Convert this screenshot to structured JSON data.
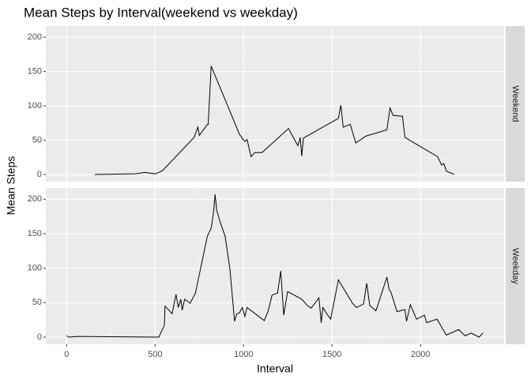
{
  "chart_data": {
    "type": "line",
    "title": "Mean Steps by Interval(weekend vs weekday)",
    "x_label": "Interval",
    "y_label": "Mean Steps",
    "xlim": [
      -117.75,
      2472.75
    ],
    "xticks": [
      0,
      500,
      1000,
      1500,
      2000
    ],
    "ylim": [
      -10.3,
      216.3
    ],
    "yticks": [
      0,
      50,
      100,
      150,
      200
    ],
    "grid": true,
    "color": "#000000",
    "series": [
      {
        "name": "Weekend",
        "x": [
          159,
          389,
          441,
          499,
          521,
          543,
          720,
          742,
          750,
          795,
          800,
          817,
          976,
          1007,
          1020,
          1042,
          1064,
          1104,
          1254,
          1307,
          1320,
          1329,
          1338,
          1536,
          1550,
          1563,
          1603,
          1634,
          1691,
          1810,
          1828,
          1845,
          1898,
          1912,
          2097,
          2119,
          2132,
          2146,
          2185,
          2190
        ],
        "values": [
          0,
          1,
          3,
          1,
          3,
          6,
          54,
          69,
          57,
          73,
          73,
          158,
          59,
          48,
          51,
          26,
          32,
          32,
          67,
          42,
          54,
          27,
          53,
          82,
          101,
          69,
          73,
          46,
          56,
          65,
          97,
          86,
          85,
          54,
          26,
          14,
          16,
          5,
          1,
          0
        ]
      },
      {
        "name": "Weekday",
        "x": [
          0,
          13,
          57,
          521,
          552,
          556,
          596,
          618,
          631,
          645,
          653,
          667,
          698,
          728,
          795,
          817,
          830,
          839,
          848,
          865,
          896,
          923,
          949,
          962,
          976,
          993,
          1007,
          1020,
          1117,
          1139,
          1161,
          1192,
          1210,
          1227,
          1249,
          1329,
          1360,
          1382,
          1426,
          1439,
          1448,
          1470,
          1492,
          1536,
          1616,
          1638,
          1678,
          1696,
          1713,
          1748,
          1810,
          1823,
          1832,
          1867,
          1912,
          1921,
          1943,
          1978,
          2022,
          2035,
          2093,
          2146,
          2216,
          2252,
          2287,
          2331,
          2353
        ],
        "values": [
          2,
          0,
          1,
          0,
          17,
          45,
          34,
          62,
          43,
          55,
          39,
          55,
          49,
          64,
          146,
          158,
          181,
          207,
          184,
          169,
          146,
          98,
          23,
          34,
          35,
          43,
          30,
          43,
          24,
          38,
          61,
          64,
          96,
          32,
          66,
          55,
          46,
          42,
          57,
          21,
          43,
          34,
          26,
          83,
          49,
          43,
          48,
          78,
          46,
          38,
          87,
          69,
          66,
          37,
          40,
          23,
          47,
          26,
          32,
          21,
          26,
          3,
          11,
          2,
          6,
          0,
          6
        ]
      }
    ]
  }
}
